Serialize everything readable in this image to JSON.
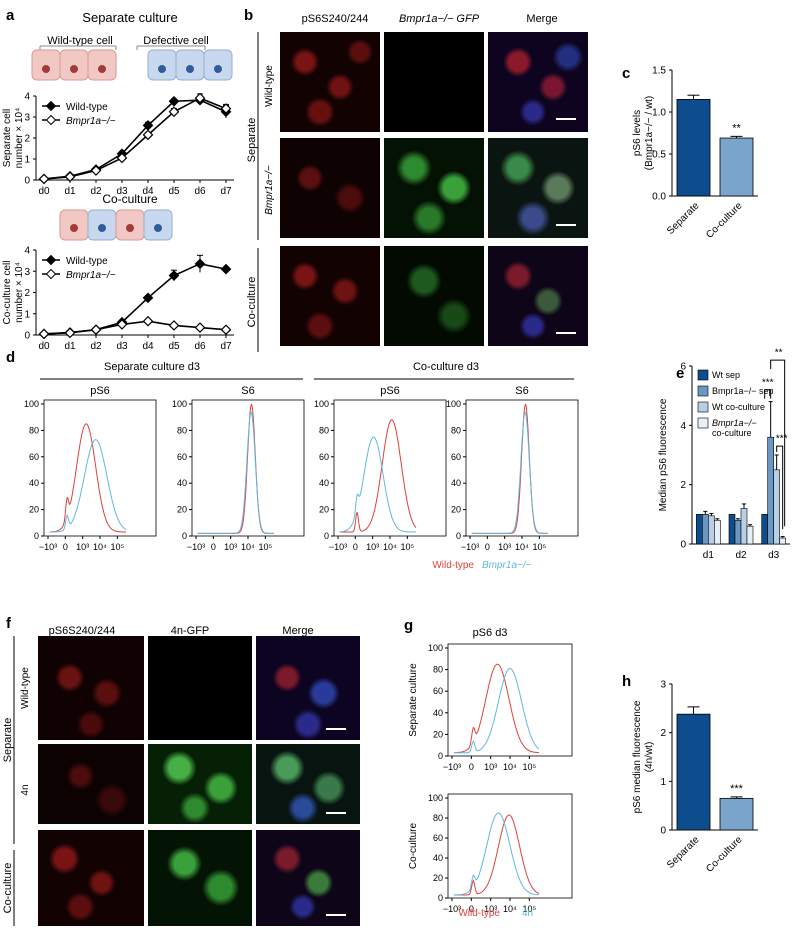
{
  "panel_labels": [
    "a",
    "b",
    "c",
    "d",
    "e",
    "f",
    "g",
    "h"
  ],
  "panel_a": {
    "title": "Separate culture",
    "wt_cell_label": "Wild-type cell",
    "defective_cell_label": "Defective cell",
    "coculture_title": "Co-culture",
    "colors": {
      "wt_cell": "#f2c8c4",
      "wt_nucleus": "#a53a3a",
      "def_cell": "#c8d8ef",
      "def_nucleus": "#2f5d9a"
    }
  },
  "panel_b": {
    "col_labels": [
      "pS6S240/244",
      "Bmpr1a−/− GFP",
      "Merge"
    ],
    "row_group_labels": [
      "Separate",
      "Co-culture"
    ],
    "row_labels": [
      "Wild-type",
      "Bmpr1a−/−",
      ""
    ]
  },
  "panel_f": {
    "col_labels": [
      "pS6S240/244",
      "4n-GFP",
      "Merge"
    ],
    "row_group_labels": [
      "Separate",
      "Co-culture"
    ],
    "row_labels": [
      "Wild-type",
      "4n",
      ""
    ]
  },
  "chart_data": [
    {
      "id": "a-top",
      "type": "line",
      "ylabel": "Separate cell number × 10⁴",
      "categories": [
        "d0",
        "d1",
        "d2",
        "d3",
        "d4",
        "d5",
        "d6",
        "d7"
      ],
      "yticks": [
        "0",
        "1",
        "2",
        "3",
        "4"
      ],
      "ylim": [
        0,
        4
      ],
      "series": [
        {
          "name": "Wild-type",
          "values": [
            0.05,
            0.18,
            0.5,
            1.25,
            2.6,
            3.75,
            3.8,
            3.25
          ],
          "errors": [
            0.02,
            0.03,
            0.05,
            0.08,
            0.15,
            0.1,
            0.15,
            0.3
          ]
        },
        {
          "name": "Bmpr1a−/−",
          "values": [
            0.05,
            0.15,
            0.45,
            1.05,
            2.15,
            3.25,
            3.9,
            3.4
          ],
          "errors": [
            0.02,
            0.03,
            0.05,
            0.08,
            0.1,
            0.15,
            0.2,
            0.2
          ]
        }
      ]
    },
    {
      "id": "a-bottom",
      "type": "line",
      "ylabel": "Co-culture cell number × 10⁴",
      "categories": [
        "d0",
        "d1",
        "d2",
        "d3",
        "d4",
        "d5",
        "d6",
        "d7"
      ],
      "yticks": [
        "0",
        "1",
        "2",
        "3",
        "4"
      ],
      "ylim": [
        0,
        4
      ],
      "series": [
        {
          "name": "Wild-type",
          "values": [
            0.05,
            0.12,
            0.25,
            0.6,
            1.75,
            2.8,
            3.35,
            3.1
          ],
          "errors": [
            0.02,
            0.02,
            0.04,
            0.05,
            0.1,
            0.25,
            0.4,
            0.1
          ]
        },
        {
          "name": "Bmpr1a−/−",
          "values": [
            0.05,
            0.1,
            0.25,
            0.5,
            0.65,
            0.45,
            0.35,
            0.25
          ],
          "errors": [
            0.02,
            0.02,
            0.03,
            0.05,
            0.05,
            0.05,
            0.05,
            0.05
          ]
        }
      ]
    },
    {
      "id": "c",
      "type": "bar",
      "ylabel": "pS6 levels (Bmpr1a−/− / wt)",
      "categories": [
        "Separate",
        "Co-culture"
      ],
      "values": [
        1.15,
        0.69
      ],
      "errors": [
        0.05,
        0.02
      ],
      "yticks": [
        "0.0",
        "0.5",
        "1.0",
        "1.5"
      ],
      "ylim": [
        0,
        1.5
      ],
      "annotations": [
        "",
        "**"
      ],
      "colors": [
        "#0d4c8d",
        "#7ba4cc"
      ]
    },
    {
      "id": "d",
      "type": "line",
      "group_titles": [
        "Separate culture d3",
        "Co-culture d3"
      ],
      "subplot_titles": [
        "pS6",
        "S6",
        "pS6",
        "S6"
      ],
      "yticks": [
        "0",
        "20",
        "40",
        "60",
        "80",
        "100"
      ],
      "ylim": [
        0,
        100
      ],
      "xticks": [
        "−10³",
        "0",
        "10³",
        "10⁴",
        "10⁵"
      ],
      "legend": [
        "Wild-type",
        "Bmpr1a−/−"
      ],
      "colors": [
        "#e0413a",
        "#5fb8e0"
      ]
    },
    {
      "id": "e",
      "type": "bar",
      "ylabel": "Median pS6 fluorescence",
      "categories": [
        "d1",
        "d2",
        "d3"
      ],
      "yticks": [
        "0",
        "2",
        "4",
        "6"
      ],
      "ylim": [
        0,
        6
      ],
      "series": [
        {
          "name": "Wt sep",
          "values": [
            1.0,
            1.0,
            1.0
          ],
          "errors": [
            0,
            0,
            0
          ]
        },
        {
          "name": "Bmpr1a−/− sep",
          "values": [
            1.0,
            0.8,
            3.6
          ],
          "errors": [
            0.1,
            0.05,
            1.2
          ]
        },
        {
          "name": "Wt co-culture",
          "values": [
            0.95,
            1.2,
            2.5
          ],
          "errors": [
            0.08,
            0.15,
            0.5
          ]
        },
        {
          "name": "Bmpr1a−/− co-culture",
          "values": [
            0.8,
            0.6,
            0.2
          ],
          "errors": [
            0.05,
            0.05,
            0.05
          ]
        }
      ],
      "colors": [
        "#0d4c8d",
        "#6b97c4",
        "#b8cfe6",
        "#e6eff8"
      ],
      "annotations": [
        "***",
        "**",
        "***"
      ]
    },
    {
      "id": "g",
      "type": "line",
      "title": "pS6 d3",
      "row_labels": [
        "Separate culture",
        "Co-culture"
      ],
      "yticks": [
        "0",
        "20",
        "40",
        "60",
        "80",
        "100"
      ],
      "ylim": [
        0,
        100
      ],
      "xticks": [
        "−10³",
        "0",
        "10³",
        "10⁴",
        "10⁵"
      ],
      "legend": [
        "Wild-type",
        "4n"
      ],
      "colors": [
        "#e0413a",
        "#5fb8e0"
      ]
    },
    {
      "id": "h",
      "type": "bar",
      "ylabel": "pS6 median fluorescence (4n/wt)",
      "categories": [
        "Separate",
        "Co-culture"
      ],
      "values": [
        2.38,
        0.65
      ],
      "errors": [
        0.15,
        0.03
      ],
      "yticks": [
        "0",
        "1",
        "2",
        "3"
      ],
      "ylim": [
        0,
        3
      ],
      "annotations": [
        "",
        "***"
      ],
      "colors": [
        "#0d4c8d",
        "#7ba4cc"
      ]
    }
  ]
}
